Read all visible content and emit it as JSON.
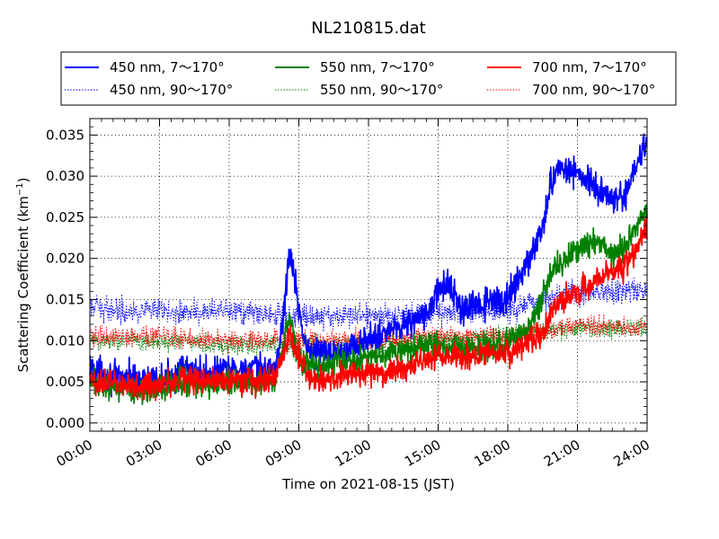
{
  "chart_data": {
    "type": "line",
    "title": "NL210815.dat",
    "xlabel": "Time on 2021-08-15 (JST)",
    "ylabel": "Scattering Coefficient (km",
    "ylabel_sup": "−1",
    "ylabel_close": ")",
    "xlim": [
      0,
      24
    ],
    "ylim": [
      -0.001,
      0.037
    ],
    "x_ticks": [
      0,
      3,
      6,
      9,
      12,
      15,
      18,
      21,
      24
    ],
    "x_tick_labels": [
      "00:00",
      "03:00",
      "06:00",
      "09:00",
      "12:00",
      "15:00",
      "18:00",
      "21:00",
      "24:00"
    ],
    "y_ticks": [
      0.0,
      0.005,
      0.01,
      0.015,
      0.02,
      0.025,
      0.03,
      0.035
    ],
    "y_tick_labels": [
      "0.000",
      "0.005",
      "0.010",
      "0.015",
      "0.020",
      "0.025",
      "0.030",
      "0.035"
    ],
    "grid": true,
    "legend_position": "top",
    "series": [
      {
        "name": "450 nm, 7～170°",
        "color": "#0000ff",
        "style": "solid",
        "noise": 0.0009,
        "x": [
          0,
          0.5,
          1,
          2,
          3,
          4,
          5,
          6,
          7,
          8,
          8.3,
          8.6,
          8.9,
          9.3,
          10,
          11,
          12,
          13,
          14,
          14.5,
          15,
          15.5,
          16,
          17,
          18,
          18.5,
          19,
          19.5,
          20,
          20.5,
          21,
          21.5,
          22,
          22.5,
          23,
          23.5,
          24
        ],
        "y": [
          0.007,
          0.006,
          0.0055,
          0.0055,
          0.005,
          0.0065,
          0.006,
          0.0065,
          0.0065,
          0.0065,
          0.012,
          0.021,
          0.016,
          0.009,
          0.0085,
          0.009,
          0.01,
          0.0115,
          0.0125,
          0.013,
          0.016,
          0.017,
          0.0135,
          0.0145,
          0.015,
          0.018,
          0.02,
          0.024,
          0.0305,
          0.031,
          0.0305,
          0.029,
          0.028,
          0.0275,
          0.027,
          0.031,
          0.035
        ]
      },
      {
        "name": "450 nm, 90～170°",
        "color": "#0000ff",
        "style": "dotted",
        "noise": 0.0007,
        "x": [
          0,
          3,
          6,
          9,
          12,
          15,
          18,
          20,
          21,
          24
        ],
        "y": [
          0.014,
          0.0135,
          0.0135,
          0.013,
          0.013,
          0.0135,
          0.0135,
          0.0155,
          0.016,
          0.016
        ]
      },
      {
        "name": "550 nm, 7～170°",
        "color": "#008000",
        "style": "solid",
        "noise": 0.0008,
        "x": [
          0,
          1,
          2,
          3,
          4,
          5,
          6,
          7,
          8,
          8.6,
          9,
          9.5,
          10,
          11,
          12,
          13,
          14,
          15,
          16,
          17,
          18,
          18.5,
          19,
          19.5,
          20,
          20.5,
          21,
          21.5,
          22,
          22.5,
          23,
          23.5,
          24
        ],
        "y": [
          0.005,
          0.0045,
          0.004,
          0.004,
          0.005,
          0.0045,
          0.005,
          0.005,
          0.005,
          0.013,
          0.0075,
          0.007,
          0.007,
          0.0075,
          0.008,
          0.0085,
          0.009,
          0.0095,
          0.009,
          0.009,
          0.01,
          0.0105,
          0.012,
          0.015,
          0.019,
          0.02,
          0.021,
          0.0215,
          0.022,
          0.0205,
          0.0215,
          0.0235,
          0.026
        ]
      },
      {
        "name": "550 nm, 90～170°",
        "color": "#008000",
        "style": "dotted",
        "noise": 0.0006,
        "x": [
          0,
          3,
          6,
          9,
          12,
          15,
          18,
          21,
          24
        ],
        "y": [
          0.01,
          0.01,
          0.0095,
          0.0095,
          0.0095,
          0.01,
          0.0105,
          0.0115,
          0.0115
        ]
      },
      {
        "name": "700 nm, 7～170°",
        "color": "#ff0000",
        "style": "solid",
        "noise": 0.0008,
        "x": [
          0,
          1,
          2,
          3,
          4,
          5,
          6,
          7,
          8,
          8.6,
          9,
          9.5,
          10,
          11,
          12,
          13,
          14,
          15,
          16,
          17,
          18,
          18.5,
          19,
          19.5,
          20,
          20.5,
          21,
          21.5,
          22,
          22.5,
          23,
          23.5,
          24
        ],
        "y": [
          0.005,
          0.005,
          0.0045,
          0.0045,
          0.0055,
          0.005,
          0.0055,
          0.005,
          0.0055,
          0.011,
          0.008,
          0.0055,
          0.005,
          0.006,
          0.006,
          0.0065,
          0.007,
          0.008,
          0.008,
          0.0085,
          0.0085,
          0.009,
          0.01,
          0.011,
          0.014,
          0.0155,
          0.016,
          0.0165,
          0.018,
          0.0185,
          0.019,
          0.021,
          0.024
        ]
      },
      {
        "name": "700 nm, 90～170°",
        "color": "#ff0000",
        "style": "dotted",
        "noise": 0.0006,
        "x": [
          0,
          3,
          6,
          9,
          12,
          15,
          18,
          21,
          24
        ],
        "y": [
          0.0105,
          0.0105,
          0.01,
          0.01,
          0.01,
          0.0105,
          0.0105,
          0.012,
          0.0115
        ]
      }
    ]
  }
}
